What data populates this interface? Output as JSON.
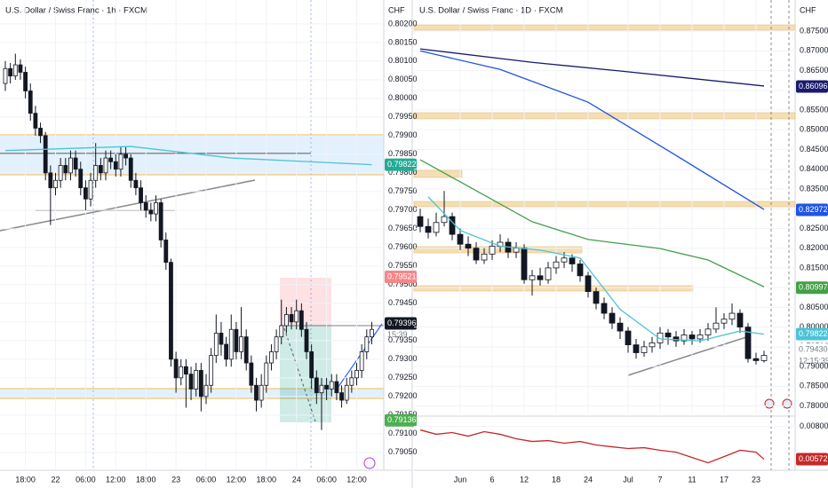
{
  "chart_data": [
    {
      "type": "candlestick",
      "title": "U.S. Dollar / Swiss Franc · 1h · FXCM",
      "currency": "CHF",
      "open": [
        0.8004,
        0.8008,
        0.8006,
        0.8009,
        0.8007,
        0.8002,
        0.7996,
        0.7992,
        0.799,
        0.798,
        0.7976,
        0.7978,
        0.7982,
        0.798,
        0.7984,
        0.7981,
        0.7976,
        0.7973,
        0.7978,
        0.7982,
        0.798,
        0.7984,
        0.7983,
        0.7981,
        0.7985,
        0.7984,
        0.7978,
        0.7976,
        0.7972,
        0.797,
        0.7969,
        0.7972,
        0.7962,
        0.7956,
        0.793,
        0.7925,
        0.7928,
        0.7926,
        0.7922,
        0.7927,
        0.792,
        0.7923,
        0.7931,
        0.7937,
        0.7934,
        0.793,
        0.7938,
        0.7932,
        0.7936,
        0.7929,
        0.7923,
        0.7919,
        0.7923,
        0.7929,
        0.7932,
        0.7936,
        0.7939,
        0.7942,
        0.794,
        0.7943,
        0.7938,
        0.7932,
        0.7925,
        0.7921,
        0.7923,
        0.7922,
        0.7924,
        0.7921,
        0.7919,
        0.7923,
        0.7925,
        0.7927,
        0.7932,
        0.7936
      ],
      "high": [
        0.801,
        0.80095,
        0.8012,
        0.80105,
        0.80085,
        0.8004,
        0.7998,
        0.79935,
        0.7991,
        0.7982,
        0.798,
        0.7984,
        0.7984,
        0.7986,
        0.7986,
        0.7983,
        0.7978,
        0.798,
        0.7988,
        0.7984,
        0.7986,
        0.7986,
        0.7985,
        0.7987,
        0.7987,
        0.7985,
        0.798,
        0.7978,
        0.7974,
        0.7972,
        0.7974,
        0.7973,
        0.7964,
        0.7957,
        0.7932,
        0.793,
        0.793,
        0.7928,
        0.7929,
        0.7929,
        0.7926,
        0.7933,
        0.7942,
        0.794,
        0.7936,
        0.7942,
        0.794,
        0.7944,
        0.7938,
        0.7931,
        0.7925,
        0.7926,
        0.7931,
        0.7934,
        0.7938,
        0.7946,
        0.7944,
        0.7944,
        0.7946,
        0.7945,
        0.794,
        0.7934,
        0.7927,
        0.7925,
        0.7925,
        0.7926,
        0.7926,
        0.7923,
        0.7925,
        0.7927,
        0.7929,
        0.7934,
        0.7938,
        0.794
      ],
      "low": [
        0.8002,
        0.8004,
        0.8005,
        0.8005,
        0.8,
        0.7994,
        0.799,
        0.7988,
        0.7978,
        0.7966,
        0.7974,
        0.7976,
        0.7978,
        0.7978,
        0.7979,
        0.7974,
        0.797,
        0.7971,
        0.7976,
        0.7978,
        0.7978,
        0.7981,
        0.7979,
        0.7979,
        0.7982,
        0.7976,
        0.7974,
        0.797,
        0.7968,
        0.7967,
        0.7967,
        0.796,
        0.7954,
        0.7928,
        0.7921,
        0.7923,
        0.7917,
        0.7919,
        0.792,
        0.7916,
        0.7918,
        0.7921,
        0.7929,
        0.7931,
        0.7928,
        0.7928,
        0.793,
        0.793,
        0.7927,
        0.7921,
        0.7916,
        0.7917,
        0.7921,
        0.7927,
        0.793,
        0.7934,
        0.7937,
        0.7938,
        0.7938,
        0.7936,
        0.793,
        0.7922,
        0.7918,
        0.7911,
        0.7919,
        0.792,
        0.7919,
        0.7917,
        0.7918,
        0.7921,
        0.7923,
        0.7925,
        0.793,
        0.7934
      ],
      "close": [
        0.8008,
        0.8006,
        0.8009,
        0.8007,
        0.8002,
        0.7996,
        0.7992,
        0.799,
        0.798,
        0.7976,
        0.7978,
        0.7982,
        0.798,
        0.7984,
        0.7981,
        0.7976,
        0.7973,
        0.7978,
        0.7982,
        0.798,
        0.7984,
        0.7983,
        0.7981,
        0.7985,
        0.7984,
        0.7978,
        0.7976,
        0.7972,
        0.797,
        0.7969,
        0.7972,
        0.7962,
        0.7956,
        0.793,
        0.7925,
        0.7928,
        0.7926,
        0.7922,
        0.7927,
        0.792,
        0.7923,
        0.7931,
        0.7937,
        0.7934,
        0.793,
        0.7938,
        0.7932,
        0.7936,
        0.7929,
        0.7923,
        0.7919,
        0.7923,
        0.7929,
        0.7932,
        0.7936,
        0.7939,
        0.7942,
        0.794,
        0.7943,
        0.7938,
        0.7932,
        0.7925,
        0.7921,
        0.7923,
        0.7922,
        0.7924,
        0.7921,
        0.7919,
        0.7923,
        0.7925,
        0.7927,
        0.7932,
        0.7936,
        0.7938
      ],
      "series": [
        {
          "color": "#4dc3d6",
          "x": [
            0,
            25,
            45,
            73
          ],
          "values": [
            0.7986,
            0.79871,
            0.7984,
            0.79822
          ]
        }
      ],
      "ylim": [
        0.79002,
        0.80264
      ],
      "yticks": [
        {
          "value": 0.7905,
          "label": "0.79050"
        },
        {
          "value": 0.791,
          "label": "0.79100"
        },
        {
          "value": 0.7915,
          "label": "0.79150"
        },
        {
          "value": 0.792,
          "label": "0.79200"
        },
        {
          "value": 0.7925,
          "label": "0.79250"
        },
        {
          "value": 0.793,
          "label": "0.79300"
        },
        {
          "value": 0.7935,
          "label": "0.79350"
        },
        {
          "value": 0.794,
          "label": "0.79400"
        },
        {
          "value": 0.7945,
          "label": "0.79450"
        },
        {
          "value": 0.795,
          "label": "0.79500"
        },
        {
          "value": 0.7955,
          "label": "0.79550"
        },
        {
          "value": 0.796,
          "label": "0.79600"
        },
        {
          "value": 0.7965,
          "label": "0.79650"
        },
        {
          "value": 0.797,
          "label": "0.79700"
        },
        {
          "value": 0.7975,
          "label": "0.79750"
        },
        {
          "value": 0.798,
          "label": "0.79800"
        },
        {
          "value": 0.7985,
          "label": "0.79850"
        },
        {
          "value": 0.799,
          "label": "0.79900"
        },
        {
          "value": 0.7995,
          "label": "0.79950"
        },
        {
          "value": 0.8,
          "label": "0.80000"
        },
        {
          "value": 0.8005,
          "label": "0.80050"
        },
        {
          "value": 0.801,
          "label": "0.80100"
        },
        {
          "value": 0.8015,
          "label": "0.80150"
        },
        {
          "value": 0.802,
          "label": "0.80200"
        }
      ],
      "xticks": [
        {
          "value": 4,
          "label": "18:00"
        },
        {
          "value": 10,
          "label": "22"
        },
        {
          "value": 16,
          "label": "06:00"
        },
        {
          "value": 22,
          "label": "12:00"
        },
        {
          "value": 28,
          "label": "18:00"
        },
        {
          "value": 34,
          "label": "23"
        },
        {
          "value": 40,
          "label": "06:00"
        },
        {
          "value": 46,
          "label": "12:00"
        },
        {
          "value": 52,
          "label": "18:00"
        },
        {
          "value": 58,
          "label": "24"
        },
        {
          "value": 64,
          "label": "06:00"
        },
        {
          "value": 70,
          "label": "12:00"
        }
      ],
      "price_tags": [
        {
          "value": 0.79822,
          "label": "0.79822",
          "color": "#22ab94"
        },
        {
          "value": 0.79521,
          "label": "0.79521",
          "color": "#f7868a"
        },
        {
          "value": 0.79136,
          "label": "0.79136",
          "color": "#4caf50"
        },
        {
          "value": 0.79396,
          "label": "0.79396",
          "color": "#131722"
        }
      ],
      "countdown": "15:39"
    },
    {
      "type": "candlestick",
      "title": "U.S. Dollar / Swiss Franc · 1D · FXCM",
      "currency": "CHF",
      "open": [
        0.828,
        0.8255,
        0.824,
        0.8265,
        0.828,
        0.8235,
        0.821,
        0.82,
        0.817,
        0.8185,
        0.8205,
        0.8215,
        0.819,
        0.82,
        0.812,
        0.813,
        0.812,
        0.815,
        0.8165,
        0.8175,
        0.816,
        0.813,
        0.809,
        0.806,
        0.8035,
        0.801,
        0.799,
        0.7955,
        0.7935,
        0.795,
        0.796,
        0.7985,
        0.7975,
        0.7965,
        0.798,
        0.797,
        0.798,
        0.7995,
        0.801,
        0.802,
        0.8035,
        0.8,
        0.792,
        0.7915
      ],
      "high": [
        0.83,
        0.8275,
        0.829,
        0.8345,
        0.829,
        0.825,
        0.823,
        0.8215,
        0.82,
        0.822,
        0.8235,
        0.8225,
        0.8215,
        0.821,
        0.8145,
        0.815,
        0.8165,
        0.818,
        0.819,
        0.8185,
        0.817,
        0.814,
        0.81,
        0.8075,
        0.805,
        0.8025,
        0.8,
        0.797,
        0.7965,
        0.7975,
        0.8,
        0.7995,
        0.799,
        0.7995,
        0.799,
        0.7995,
        0.801,
        0.805,
        0.8035,
        0.806,
        0.8045,
        0.801,
        0.7935,
        0.794
      ],
      "low": [
        0.824,
        0.8225,
        0.823,
        0.8255,
        0.822,
        0.8195,
        0.818,
        0.816,
        0.816,
        0.817,
        0.819,
        0.8175,
        0.8175,
        0.811,
        0.808,
        0.8105,
        0.811,
        0.8135,
        0.815,
        0.814,
        0.8115,
        0.8075,
        0.8045,
        0.802,
        0.7995,
        0.797,
        0.7935,
        0.792,
        0.7925,
        0.7935,
        0.7945,
        0.7955,
        0.795,
        0.7955,
        0.7955,
        0.796,
        0.7965,
        0.7985,
        0.7995,
        0.8005,
        0.7985,
        0.791,
        0.7905,
        0.791
      ],
      "close": [
        0.8255,
        0.824,
        0.8265,
        0.828,
        0.8235,
        0.821,
        0.82,
        0.817,
        0.8185,
        0.8205,
        0.8215,
        0.819,
        0.82,
        0.812,
        0.813,
        0.812,
        0.815,
        0.8165,
        0.8175,
        0.816,
        0.813,
        0.809,
        0.806,
        0.8035,
        0.801,
        0.799,
        0.7955,
        0.7935,
        0.795,
        0.796,
        0.7985,
        0.7975,
        0.7965,
        0.798,
        0.797,
        0.798,
        0.7995,
        0.801,
        0.802,
        0.8035,
        0.8,
        0.792,
        0.7915,
        0.7928
      ],
      "series": [
        {
          "color": "#1a1a6e",
          "x": [
            0,
            14,
            25,
            43
          ],
          "values": [
            0.8705,
            0.8671,
            0.8649,
            0.8611
          ]
        },
        {
          "color": "#1e53e5",
          "x": [
            0,
            10,
            21,
            32,
            43
          ],
          "values": [
            0.87,
            0.8653,
            0.857,
            0.8435,
            0.8298
          ]
        },
        {
          "color": "#43a047",
          "x": [
            0,
            5,
            14,
            21,
            30,
            36,
            43
          ],
          "values": [
            0.8424,
            0.8368,
            0.8267,
            0.8222,
            0.8199,
            0.817,
            0.8102
          ]
        },
        {
          "color": "#4dc3d6",
          "x": [
            1,
            5,
            10,
            15,
            20,
            25,
            30,
            35,
            40,
            43
          ],
          "values": [
            0.833,
            0.8245,
            0.8205,
            0.8195,
            0.8175,
            0.8045,
            0.797,
            0.7965,
            0.799,
            0.7982
          ]
        }
      ],
      "ylim": [
        0.7781,
        0.8829
      ],
      "yticks": [
        {
          "value": 0.78,
          "label": "0.78000"
        },
        {
          "value": 0.785,
          "label": "0.78500"
        },
        {
          "value": 0.79,
          "label": "0.79000"
        },
        {
          "value": 0.795,
          "label": "0.79500"
        },
        {
          "value": 0.8,
          "label": "0.80000"
        },
        {
          "value": 0.805,
          "label": "0.80500"
        },
        {
          "value": 0.81,
          "label": "0.81000"
        },
        {
          "value": 0.815,
          "label": "0.81500"
        },
        {
          "value": 0.82,
          "label": "0.82000"
        },
        {
          "value": 0.825,
          "label": "0.82500"
        },
        {
          "value": 0.83,
          "label": "0.83000"
        },
        {
          "value": 0.835,
          "label": "0.83500"
        },
        {
          "value": 0.84,
          "label": "0.84000"
        },
        {
          "value": 0.845,
          "label": "0.84500"
        },
        {
          "value": 0.85,
          "label": "0.85000"
        },
        {
          "value": 0.855,
          "label": "0.85500"
        },
        {
          "value": 0.86,
          "label": "0.86000"
        },
        {
          "value": 0.865,
          "label": "0.86500"
        },
        {
          "value": 0.87,
          "label": "0.87000"
        },
        {
          "value": 0.875,
          "label": "0.87500"
        }
      ],
      "xticks": [
        {
          "value": 5,
          "label": "Jun"
        },
        {
          "value": 9,
          "label": "6"
        },
        {
          "value": 13,
          "label": "12"
        },
        {
          "value": 17,
          "label": "18"
        },
        {
          "value": 21,
          "label": "24"
        },
        {
          "value": 26,
          "label": "Jul"
        },
        {
          "value": 30,
          "label": "7"
        },
        {
          "value": 34,
          "label": "11"
        },
        {
          "value": 38,
          "label": "17"
        },
        {
          "value": 42,
          "label": "23"
        }
      ],
      "price_tags": [
        {
          "value": 0.86096,
          "label": "0.86096",
          "color": "#1a1a6e"
        },
        {
          "value": 0.82972,
          "label": "0.82972",
          "color": "#1e53e5"
        },
        {
          "value": 0.80997,
          "label": "0.80997",
          "color": "#43a047"
        },
        {
          "value": 0.79822,
          "label": "0.79822",
          "color": "#4dc3d6"
        },
        {
          "value": 0.7943,
          "label": "0.79430",
          "color": "#ffffff"
        }
      ],
      "countdown": "12:15:39"
    },
    {
      "type": "line",
      "series": [
        {
          "color": "#c62828",
          "x": [
            0,
            2,
            4,
            6,
            8,
            10,
            12,
            14,
            16,
            18,
            20,
            22,
            24,
            26,
            28,
            30,
            32,
            34,
            36,
            38,
            40,
            42,
            43
          ],
          "values": [
            0.00775,
            0.00745,
            0.00757,
            0.00732,
            0.00763,
            0.00745,
            0.00714,
            0.00695,
            0.00701,
            0.00683,
            0.00695,
            0.00671,
            0.00658,
            0.00646,
            0.00652,
            0.00634,
            0.00621,
            0.00584,
            0.00547,
            0.0059,
            0.00634,
            0.00621,
            0.00572
          ]
        }
      ],
      "ylim": [
        0.0052,
        0.0084
      ],
      "yticks": [
        {
          "value": 0.008,
          "label": "0.00800"
        }
      ],
      "price_tags": [
        {
          "value": 0.00572,
          "label": "0.00572",
          "color": "#c62828"
        }
      ]
    }
  ]
}
